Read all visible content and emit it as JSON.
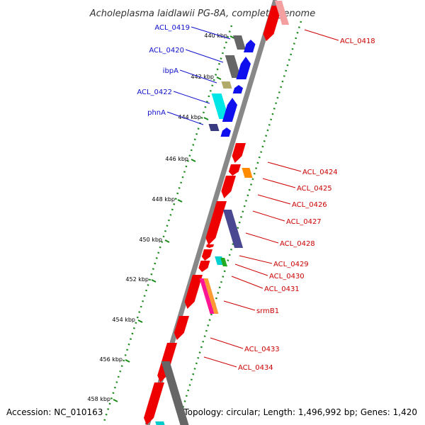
{
  "title": "Acholeplasma laidlawii PG-8A, complete genome",
  "footer": {
    "accession": "Accession: NC_010163",
    "summary": "Topology: circular; Length: 1,496,992 bp; Genes: 1,420"
  },
  "colors": {
    "backbone": "#888888",
    "tick": "#1a8a1a",
    "forward_label": "#1010cc",
    "reverse_label": "#cc0000"
  },
  "ticks": [
    {
      "label": "440 kbp"
    },
    {
      "label": "442 kbp"
    },
    {
      "label": "444 kbp"
    },
    {
      "label": "446 kbp"
    },
    {
      "label": "448 kbp"
    },
    {
      "label": "450 kbp"
    },
    {
      "label": "452 kbp"
    },
    {
      "label": "454 kbp"
    },
    {
      "label": "456 kbp"
    },
    {
      "label": "458 kbp"
    }
  ],
  "forward_labels": [
    {
      "name": "ACL_0419"
    },
    {
      "name": "ACL_0420"
    },
    {
      "name": "ibpA"
    },
    {
      "name": "ACL_0422"
    },
    {
      "name": "phnA"
    }
  ],
  "reverse_labels": [
    {
      "name": "ACL_0418"
    },
    {
      "name": "ACL_0424"
    },
    {
      "name": "ACL_0425"
    },
    {
      "name": "ACL_0426"
    },
    {
      "name": "ACL_0427"
    },
    {
      "name": "ACL_0428"
    },
    {
      "name": "ACL_0429"
    },
    {
      "name": "ACL_0430"
    },
    {
      "name": "ACL_0431"
    },
    {
      "name": "srmB1"
    },
    {
      "name": "ACL_0433"
    },
    {
      "name": "ACL_0434"
    }
  ]
}
